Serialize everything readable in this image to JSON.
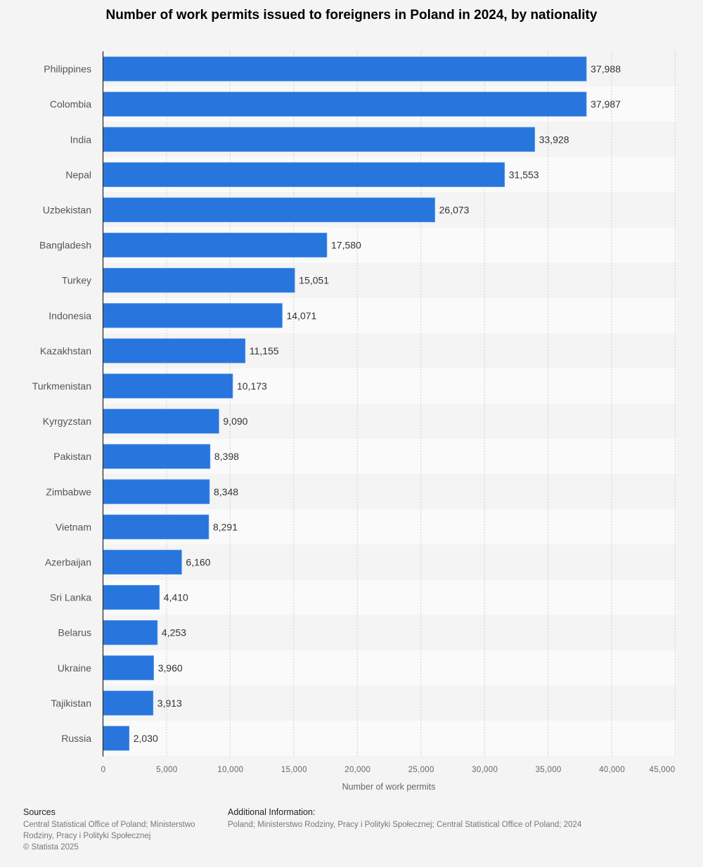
{
  "chart_data": {
    "type": "bar",
    "orientation": "horizontal",
    "title": "Number of work permits issued to foreigners in Poland in 2024, by nationality",
    "xlabel": "Number of work permits",
    "ylabel": "",
    "xlim": [
      0,
      45000
    ],
    "grid": true,
    "x_ticks": [
      0,
      5000,
      10000,
      15000,
      20000,
      25000,
      30000,
      35000,
      40000,
      45000
    ],
    "x_tick_labels": [
      "0",
      "5,000",
      "10,000",
      "15,000",
      "20,000",
      "25,000",
      "30,000",
      "35,000",
      "40,000",
      "45,000"
    ],
    "categories": [
      "Philippines",
      "Colombia",
      "India",
      "Nepal",
      "Uzbekistan",
      "Bangladesh",
      "Turkey",
      "Indonesia",
      "Kazakhstan",
      "Turkmenistan",
      "Kyrgyzstan",
      "Pakistan",
      "Zimbabwe",
      "Vietnam",
      "Azerbaijan",
      "Sri Lanka",
      "Belarus",
      "Ukraine",
      "Tajikistan",
      "Russia"
    ],
    "values": [
      37988,
      37987,
      33928,
      31553,
      26073,
      17580,
      15051,
      14071,
      11155,
      10173,
      9090,
      8398,
      8348,
      8291,
      6160,
      4410,
      4253,
      3960,
      3913,
      2030
    ],
    "value_labels": [
      "37,988",
      "37,987",
      "33,928",
      "31,553",
      "26,073",
      "17,580",
      "15,051",
      "14,071",
      "11,155",
      "10,173",
      "9,090",
      "8,398",
      "8,348",
      "8,291",
      "6,160",
      "4,410",
      "4,253",
      "3,960",
      "3,913",
      "2,030"
    ],
    "bar_color": "#2876dd"
  },
  "footer": {
    "sources_heading": "Sources",
    "sources_line1": "Central Statistical Office of Poland; Ministerstwo",
    "sources_line2": "Rodziny, Pracy i Polityki Społecznej",
    "copyright": "© Statista 2025",
    "additional_heading": "Additional Information:",
    "additional_text": "Poland; Ministerstwo Rodziny, Pracy i Polityki Społecznej; Central Statistical Office of Poland; 2024"
  }
}
